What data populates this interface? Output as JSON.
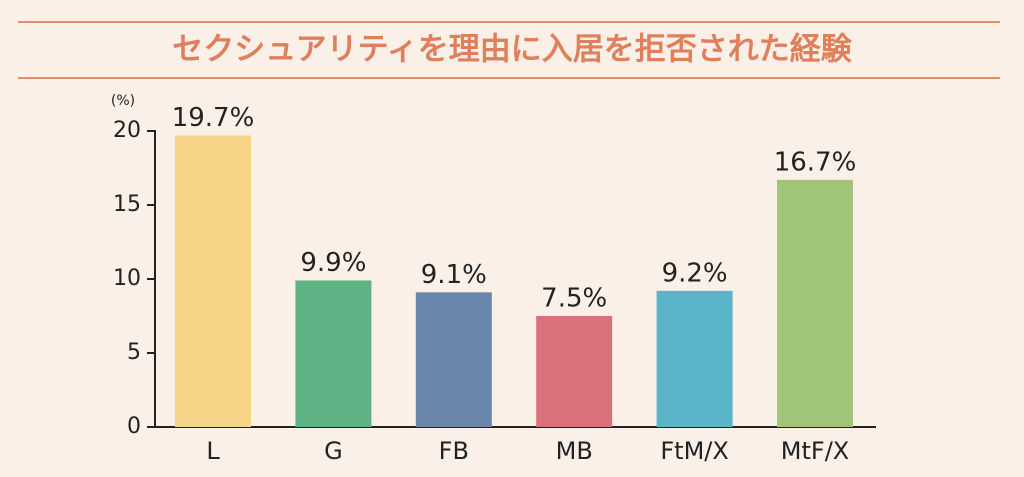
{
  "chart_data": {
    "type": "bar",
    "title": "セクシュアリティを理由に入居を拒否された経験",
    "y_label": "(%)",
    "categories": [
      "L",
      "G",
      "FB",
      "MB",
      "FtM/X",
      "MtF/X"
    ],
    "values": [
      19.7,
      9.9,
      9.1,
      7.5,
      9.2,
      16.7
    ],
    "value_labels": [
      "19.7%",
      "9.9%",
      "9.1%",
      "7.5%",
      "9.2%",
      "16.7%"
    ],
    "colors": [
      "#f5d387",
      "#5fb283",
      "#6a86ab",
      "#d9707a",
      "#5ab5c8",
      "#9fc47a"
    ],
    "ylim": [
      0,
      20
    ],
    "yticks": [
      0,
      5,
      10,
      15,
      20
    ],
    "grid": false
  }
}
